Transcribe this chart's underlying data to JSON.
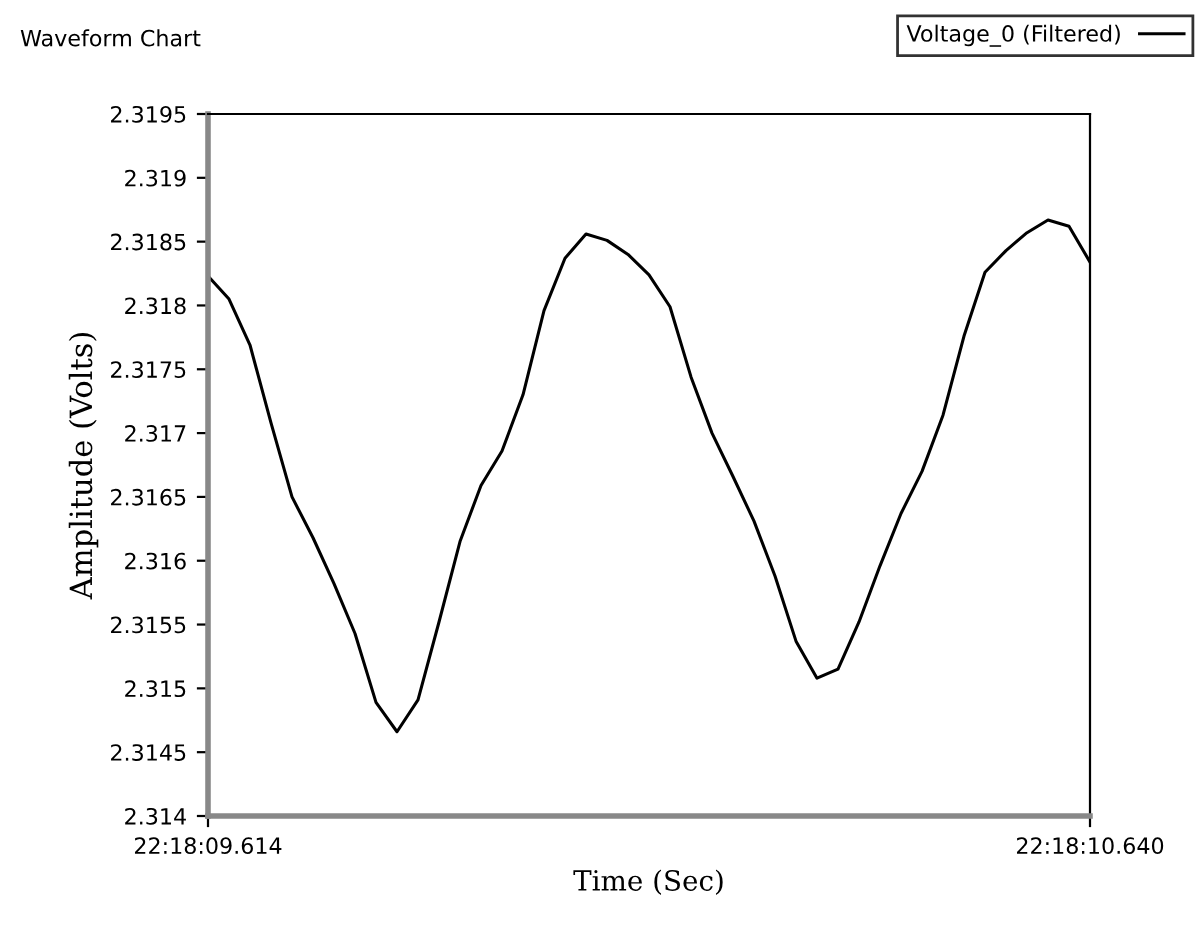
{
  "chart_data": {
    "type": "line",
    "title": "Waveform Chart",
    "xlabel": "Time (Sec)",
    "ylabel": "Amplitude (Volts)",
    "categories": [
      "22:18:09.614",
      null,
      null,
      null,
      null,
      null,
      null,
      null,
      null,
      null,
      null,
      null,
      null,
      null,
      null,
      null,
      null,
      null,
      null,
      null,
      null,
      null,
      null,
      null,
      null,
      null,
      null,
      null,
      null,
      null,
      null,
      null,
      null,
      null,
      null,
      null,
      null,
      null,
      null,
      null,
      null,
      null,
      "22:18:10.640"
    ],
    "ylim": [
      2.314,
      2.3195
    ],
    "yticks": [
      2.314,
      2.3145,
      2.315,
      2.3155,
      2.316,
      2.3165,
      2.317,
      2.3175,
      2.318,
      2.3185,
      2.319,
      2.3195
    ],
    "grid": false,
    "legend": "top right",
    "marker": "none",
    "line_style": "solid",
    "series": [
      {
        "name": "Voltage_0 (Filtered)",
        "color": "#000000",
        "values": [
          2.31823,
          2.31805,
          2.31769,
          2.31708,
          2.3165,
          2.31618,
          2.31582,
          2.31543,
          2.31489,
          2.31466,
          2.31491,
          2.31552,
          2.31615,
          2.31659,
          2.31686,
          2.3173,
          2.31796,
          2.31837,
          2.31856,
          2.31851,
          2.3184,
          2.31824,
          2.31799,
          2.31744,
          2.317,
          2.31666,
          2.31631,
          2.31588,
          2.31537,
          2.31508,
          2.31515,
          2.31552,
          2.31596,
          2.31637,
          2.3167,
          2.31714,
          2.31776,
          2.31826,
          2.31843,
          2.31857,
          2.31867,
          2.31862,
          2.31834
        ]
      }
    ]
  }
}
